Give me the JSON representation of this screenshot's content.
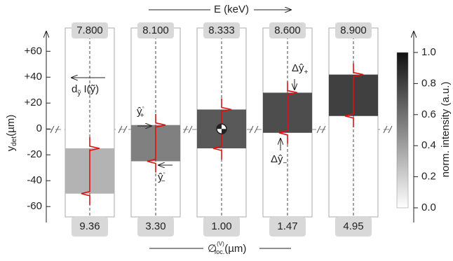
{
  "chart_data": {
    "type": "strips",
    "top_label": "E (keV)",
    "y_label": {
      "main": "y",
      "sub": "det",
      "unit": "(µm)"
    },
    "bottom_label": {
      "symbol": "∅",
      "sup": "(V)",
      "sub": "foc.",
      "unit": "(µm)"
    },
    "ylim": [
      -68,
      78
    ],
    "yticks": [
      {
        "value": 60,
        "label": "+60"
      },
      {
        "value": 40,
        "label": "+40"
      },
      {
        "value": 20,
        "label": "+20"
      },
      0,
      -20,
      -40,
      -60
    ],
    "panels": [
      {
        "energy": {
          "value": 7.8,
          "label": "7.800"
        },
        "diameter": 9.36,
        "lower": -50,
        "upper": -15,
        "intensity": 0.3
      },
      {
        "energy": {
          "value": 8.1,
          "label": "8.100"
        },
        "diameter": {
          "value": 3.3,
          "label": "3.30"
        },
        "lower": -25,
        "upper": 3,
        "intensity": 0.5
      },
      {
        "energy": 8.333,
        "diameter": {
          "value": 1,
          "label": "1.00"
        },
        "lower": -15,
        "upper": 15,
        "intensity": 0.65
      },
      {
        "energy": {
          "value": 8.6,
          "label": "8.600"
        },
        "diameter": 1.47,
        "lower": -3,
        "upper": 28,
        "intensity": 0.7
      },
      {
        "energy": {
          "value": 8.9,
          "label": "8.900"
        },
        "diameter": 4.95,
        "lower": 10,
        "upper": 42,
        "intensity": 0.75
      }
    ],
    "colorbar": {
      "label": "norm. intensity (a.u.)",
      "lim": [
        0,
        1
      ],
      "ticks": [
        {
          "value": 0,
          "label": "0.0"
        },
        {
          "value": 0.2,
          "label": "0.2"
        },
        {
          "value": 0.4,
          "label": "0.4"
        },
        {
          "value": 0.6,
          "label": "0.6"
        },
        {
          "value": 0.8,
          "label": "0.8"
        },
        {
          "value": 1,
          "label": "1.0"
        }
      ]
    },
    "annotations": {
      "derivative": {
        "d": "d",
        "sub": "ỹ",
        "rest": " I(ỹ)"
      },
      "y_plus_0": {
        "main": "ŷ",
        "sup": "◦",
        "sub": "+"
      },
      "y_minus_0": {
        "main": "ŷ",
        "sup": "◦",
        "sub": "−"
      },
      "dy_plus": {
        "main": "Δŷ",
        "sub": "+"
      },
      "dy_minus": {
        "main": "Δŷ",
        "sub": "−"
      }
    }
  }
}
